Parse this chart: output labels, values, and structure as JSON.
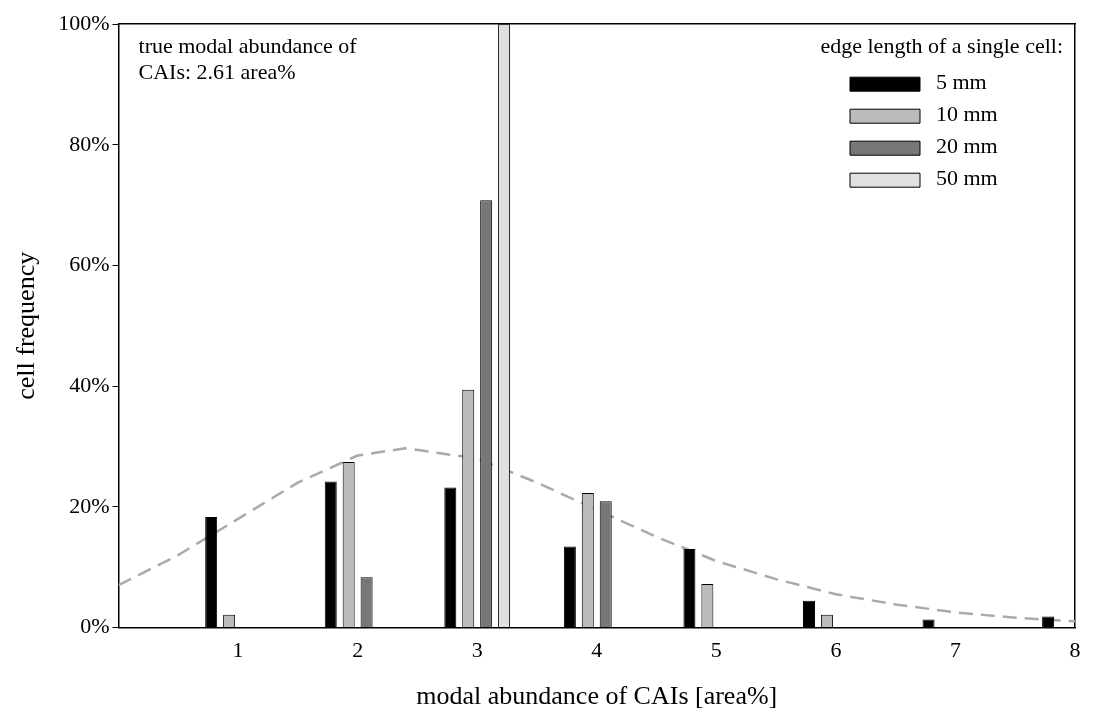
{
  "chart_data": {
    "type": "bar",
    "xlabel": "modal abundance of CAIs [area%]",
    "ylabel": "cell frequency",
    "x": [
      1,
      2,
      3,
      4,
      5,
      6,
      7,
      8
    ],
    "xlim": [
      0,
      8
    ],
    "xticks": [
      1,
      2,
      3,
      4,
      5,
      6,
      7,
      8
    ],
    "ylim": [
      0,
      100
    ],
    "yticks": [
      {
        "value": 0,
        "label": "0%"
      },
      {
        "value": 20,
        "label": "20%"
      },
      {
        "value": 40,
        "label": "40%"
      },
      {
        "value": 60,
        "label": "60%"
      },
      {
        "value": 80,
        "label": "80%"
      },
      {
        "value": 100,
        "label": "100%"
      }
    ],
    "legend": "top right",
    "legend_title": "edge length of a single cell:",
    "grid": false,
    "annotations": [
      "true modal abundance of CAIs: 2.61 area%"
    ],
    "series": [
      {
        "name": "5 mm",
        "color": "#000000",
        "values": [
          18.3,
          24.2,
          23.2,
          13.4,
          13.0,
          4.4,
          1.3,
          1.8
        ]
      },
      {
        "name": "10 mm",
        "color": "#bbbbbb",
        "values": [
          2.1,
          27.4,
          39.4,
          22.3,
          7.2,
          2.1,
          null,
          null
        ]
      },
      {
        "name": "20 mm",
        "color": "#777777",
        "values": [
          null,
          8.3,
          70.8,
          20.9,
          null,
          null,
          null,
          null
        ]
      },
      {
        "name": "50 mm",
        "color": "#e0e0e0",
        "values": [
          null,
          null,
          100,
          null,
          null,
          null,
          null,
          null
        ]
      },
      {
        "type": "line",
        "color": "#aaaaaa",
        "line_style": "dashed",
        "x": [
          0,
          0.5,
          1,
          1.5,
          2,
          2.4,
          3,
          3.5,
          4,
          4.5,
          5,
          5.5,
          6,
          6.5,
          7,
          7.5,
          8
        ],
        "values": [
          7,
          12,
          18,
          24,
          28.5,
          29.7,
          28,
          24,
          19.5,
          15,
          11,
          8,
          5.5,
          3.8,
          2.5,
          1.6,
          1
        ]
      }
    ]
  }
}
